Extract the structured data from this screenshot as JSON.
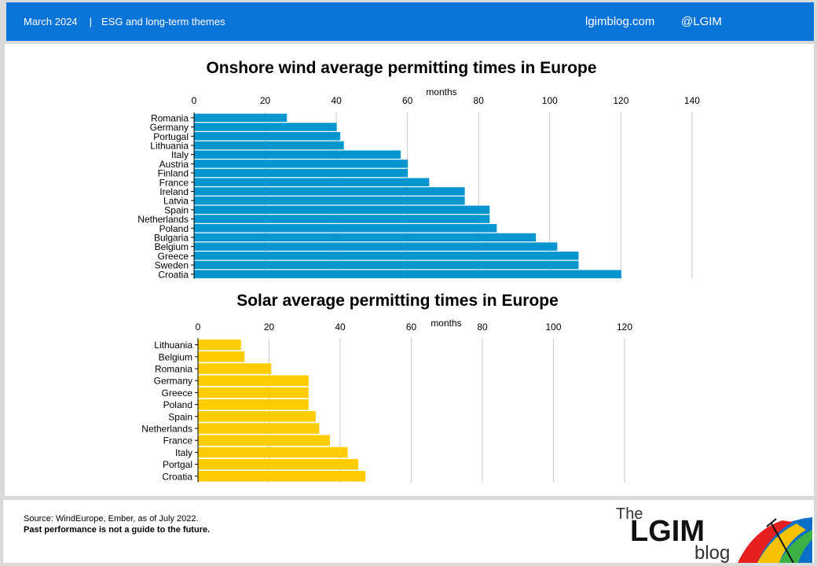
{
  "header": {
    "date": "March 2024",
    "separator": "|",
    "topic": "ESG and long-term themes",
    "site": "lgimblog.com",
    "handle": "@LGIM"
  },
  "colors": {
    "header_bg": "#0b74d8",
    "wind_bar": "#0596cf",
    "solar_bar": "#ffcc00"
  },
  "chart_data": [
    {
      "type": "bar",
      "orientation": "horizontal",
      "title": "Onshore wind average permitting times in Europe",
      "xlabel": "months",
      "xlim": [
        0,
        140
      ],
      "ticks": [
        0,
        20,
        40,
        60,
        80,
        100,
        120,
        140
      ],
      "grid": true,
      "categories": [
        "Romania",
        "Germany",
        "Portugal",
        "Lithuania",
        "Italy",
        "Austria",
        "Finland",
        "France",
        "Ireland",
        "Latvia",
        "Spain",
        "Netherlands",
        "Poland",
        "Bulgaria",
        "Belgium",
        "Greece",
        "Sweden",
        "Croatia"
      ],
      "values": [
        26,
        40,
        41,
        42,
        58,
        60,
        60,
        66,
        76,
        76,
        83,
        83,
        85,
        96,
        102,
        108,
        108,
        120
      ]
    },
    {
      "type": "bar",
      "orientation": "horizontal",
      "title": "Solar average permitting times in Europe",
      "xlabel": "months",
      "xlim": [
        0,
        120
      ],
      "ticks": [
        0,
        20,
        40,
        60,
        80,
        100,
        120
      ],
      "grid": true,
      "categories": [
        "Lithuania",
        "Belgium",
        "Romania",
        "Germany",
        "Greece",
        "Poland",
        "Spain",
        "Netherlands",
        "France",
        "Italy",
        "Portgal",
        "Croatia"
      ],
      "values": [
        12,
        13,
        20.5,
        31,
        31,
        31,
        33,
        34,
        37,
        42,
        45,
        47
      ]
    }
  ],
  "footer": {
    "source": "Source: WindEurope, Ember, as of July 2022.",
    "disclaimer": "Past performance is not a guide to the future."
  },
  "logo": {
    "the": "The",
    "brand": "LGIM",
    "blog": "blog"
  }
}
